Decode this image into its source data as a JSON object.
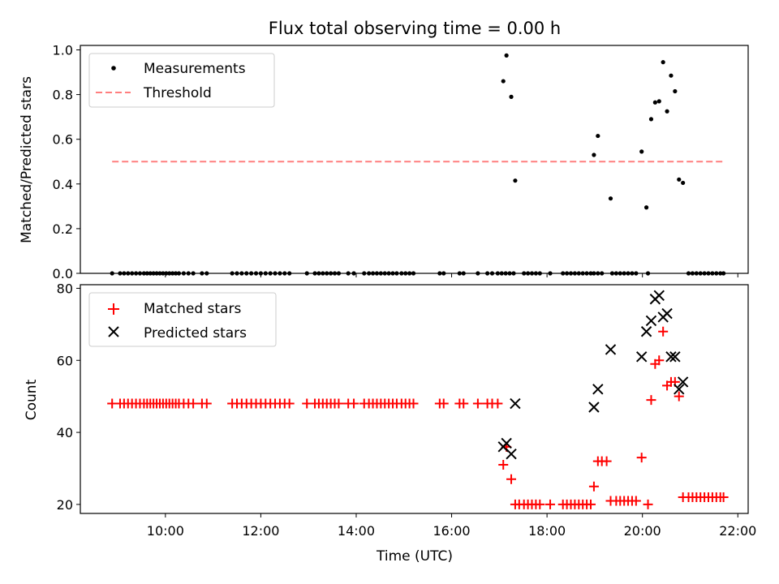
{
  "figure_title": "Flux total observing time = 0.00 h",
  "colors": {
    "measurement": "#000000",
    "threshold": "#ff7f7f",
    "matched": "#ff0000",
    "predicted": "#000000"
  },
  "chart_data": [
    {
      "type": "scatter",
      "ylabel": "Matched/Predicted stars",
      "xlim": [
        "08:13",
        "22:13"
      ],
      "ylim": [
        0,
        1.02
      ],
      "y_ticks": [
        "0.0",
        "0.2",
        "0.4",
        "0.6",
        "0.8",
        "1.0"
      ],
      "legend_position": "upper-left",
      "series": [
        {
          "name": "Measurements",
          "marker": "dot",
          "x": [
            "08:53",
            "09:03",
            "09:08",
            "09:13",
            "09:18",
            "09:23",
            "09:28",
            "09:33",
            "09:37",
            "09:41",
            "09:45",
            "09:49",
            "09:53",
            "09:57",
            "10:01",
            "10:05",
            "10:09",
            "10:13",
            "10:17",
            "10:23",
            "10:29",
            "10:35",
            "10:46",
            "10:52",
            "11:24",
            "11:30",
            "11:36",
            "11:42",
            "11:48",
            "11:54",
            "12:00",
            "12:06",
            "12:12",
            "12:18",
            "12:24",
            "12:30",
            "12:36",
            "12:58",
            "13:08",
            "13:13",
            "13:18",
            "13:23",
            "13:28",
            "13:33",
            "13:38",
            "13:50",
            "13:57",
            "14:10",
            "14:16",
            "14:21",
            "14:26",
            "14:31",
            "14:36",
            "14:41",
            "14:46",
            "14:51",
            "14:57",
            "15:02",
            "15:07",
            "15:12",
            "15:45",
            "15:50",
            "16:10",
            "16:15",
            "16:33",
            "16:45",
            "16:51",
            "16:58",
            "17:03",
            "17:08",
            "17:13",
            "17:18",
            "17:31",
            "17:36",
            "17:41",
            "17:46",
            "17:51",
            "18:04",
            "18:20",
            "18:25",
            "18:30",
            "18:35",
            "18:40",
            "18:45",
            "18:50",
            "18:55",
            "18:59",
            "19:04",
            "19:09",
            "19:22",
            "19:27",
            "19:32",
            "19:37",
            "19:42",
            "19:47",
            "19:52",
            "20:07",
            "20:58",
            "21:03",
            "21:08",
            "21:13",
            "21:18",
            "21:23",
            "21:28",
            "21:33",
            "21:38",
            "21:42",
            "17:05",
            "17:09",
            "17:15",
            "17:20",
            "18:59",
            "19:04",
            "19:20",
            "19:59",
            "20:05",
            "20:11",
            "20:16",
            "20:21",
            "20:26",
            "20:31",
            "20:36",
            "20:41",
            "20:46",
            "20:51"
          ],
          "y": [
            0,
            0,
            0,
            0,
            0,
            0,
            0,
            0,
            0,
            0,
            0,
            0,
            0,
            0,
            0,
            0,
            0,
            0,
            0,
            0,
            0,
            0,
            0,
            0,
            0,
            0,
            0,
            0,
            0,
            0,
            0,
            0,
            0,
            0,
            0,
            0,
            0,
            0,
            0,
            0,
            0,
            0,
            0,
            0,
            0,
            0,
            0,
            0,
            0,
            0,
            0,
            0,
            0,
            0,
            0,
            0,
            0,
            0,
            0,
            0,
            0,
            0,
            0,
            0,
            0,
            0,
            0,
            0,
            0,
            0,
            0,
            0,
            0,
            0,
            0,
            0,
            0,
            0,
            0,
            0,
            0,
            0,
            0,
            0,
            0,
            0,
            0,
            0,
            0,
            0,
            0,
            0,
            0,
            0,
            0,
            0,
            0,
            0,
            0,
            0,
            0,
            0,
            0,
            0,
            0,
            0,
            0,
            0.86,
            0.975,
            0.79,
            0.415,
            0.53,
            0.615,
            0.335,
            0.545,
            0.295,
            0.69,
            0.765,
            0.77,
            0.945,
            0.725,
            0.885,
            0.815,
            0.42,
            0.405
          ]
        },
        {
          "name": "Threshold",
          "marker": "dashed-line",
          "x": [
            "08:53",
            "21:42"
          ],
          "y": [
            0.5,
            0.5
          ]
        }
      ]
    },
    {
      "type": "scatter",
      "xlabel": "Time (UTC)",
      "ylabel": "Count",
      "xlim": [
        "08:13",
        "22:13"
      ],
      "ylim": [
        17.5,
        81
      ],
      "y_ticks": [
        "20",
        "40",
        "60",
        "80"
      ],
      "x_ticks": [
        "10:00",
        "12:00",
        "14:00",
        "16:00",
        "18:00",
        "20:00",
        "22:00"
      ],
      "legend_position": "upper-left",
      "series": [
        {
          "name": "Matched stars",
          "marker": "plus",
          "x": [
            "08:53",
            "09:03",
            "09:08",
            "09:13",
            "09:18",
            "09:23",
            "09:28",
            "09:33",
            "09:37",
            "09:41",
            "09:45",
            "09:49",
            "09:53",
            "09:57",
            "10:01",
            "10:05",
            "10:09",
            "10:13",
            "10:17",
            "10:23",
            "10:29",
            "10:35",
            "10:46",
            "10:52",
            "11:24",
            "11:30",
            "11:36",
            "11:42",
            "11:48",
            "11:54",
            "12:00",
            "12:06",
            "12:12",
            "12:18",
            "12:24",
            "12:30",
            "12:36",
            "12:58",
            "13:08",
            "13:13",
            "13:18",
            "13:23",
            "13:28",
            "13:33",
            "13:38",
            "13:50",
            "13:57",
            "14:10",
            "14:16",
            "14:21",
            "14:26",
            "14:31",
            "14:36",
            "14:41",
            "14:46",
            "14:51",
            "14:57",
            "15:02",
            "15:07",
            "15:12",
            "15:45",
            "15:50",
            "16:10",
            "16:15",
            "16:33",
            "16:45",
            "16:51",
            "16:58",
            "17:05",
            "17:09",
            "17:15",
            "17:20",
            "17:25",
            "17:31",
            "17:36",
            "17:41",
            "17:46",
            "17:51",
            "18:04",
            "18:20",
            "18:25",
            "18:30",
            "18:35",
            "18:40",
            "18:45",
            "18:50",
            "18:55",
            "18:59",
            "19:04",
            "19:09",
            "19:15",
            "19:20",
            "19:27",
            "19:32",
            "19:37",
            "19:42",
            "19:47",
            "19:52",
            "19:59",
            "20:07",
            "20:11",
            "20:16",
            "20:21",
            "20:26",
            "20:31",
            "20:36",
            "20:41",
            "20:46",
            "20:51",
            "20:58",
            "21:03",
            "21:08",
            "21:13",
            "21:18",
            "21:23",
            "21:28",
            "21:33",
            "21:38",
            "21:42"
          ],
          "y": [
            48,
            48,
            48,
            48,
            48,
            48,
            48,
            48,
            48,
            48,
            48,
            48,
            48,
            48,
            48,
            48,
            48,
            48,
            48,
            48,
            48,
            48,
            48,
            48,
            48,
            48,
            48,
            48,
            48,
            48,
            48,
            48,
            48,
            48,
            48,
            48,
            48,
            48,
            48,
            48,
            48,
            48,
            48,
            48,
            48,
            48,
            48,
            48,
            48,
            48,
            48,
            48,
            48,
            48,
            48,
            48,
            48,
            48,
            48,
            48,
            48,
            48,
            48,
            48,
            48,
            48,
            48,
            48,
            31,
            36,
            27,
            20,
            20,
            20,
            20,
            20,
            20,
            20,
            20,
            20,
            20,
            20,
            20,
            20,
            20,
            20,
            20,
            25,
            32,
            32,
            32,
            21,
            21,
            21,
            21,
            21,
            21,
            21,
            33,
            20,
            49,
            59,
            60,
            68,
            53,
            54,
            54,
            50,
            22,
            22,
            22,
            22,
            22,
            22,
            22,
            22,
            22,
            22,
            22
          ]
        },
        {
          "name": "Predicted stars",
          "marker": "cross",
          "x": [
            "17:05",
            "17:09",
            "17:15",
            "17:20",
            "18:59",
            "19:04",
            "19:20",
            "19:59",
            "20:05",
            "20:11",
            "20:16",
            "20:21",
            "20:26",
            "20:31",
            "20:36",
            "20:41",
            "20:46",
            "20:51"
          ],
          "y": [
            36,
            37,
            34,
            48,
            47,
            52,
            63,
            61,
            68,
            71,
            77,
            78,
            72,
            73,
            61,
            61,
            52,
            54
          ]
        }
      ]
    }
  ]
}
